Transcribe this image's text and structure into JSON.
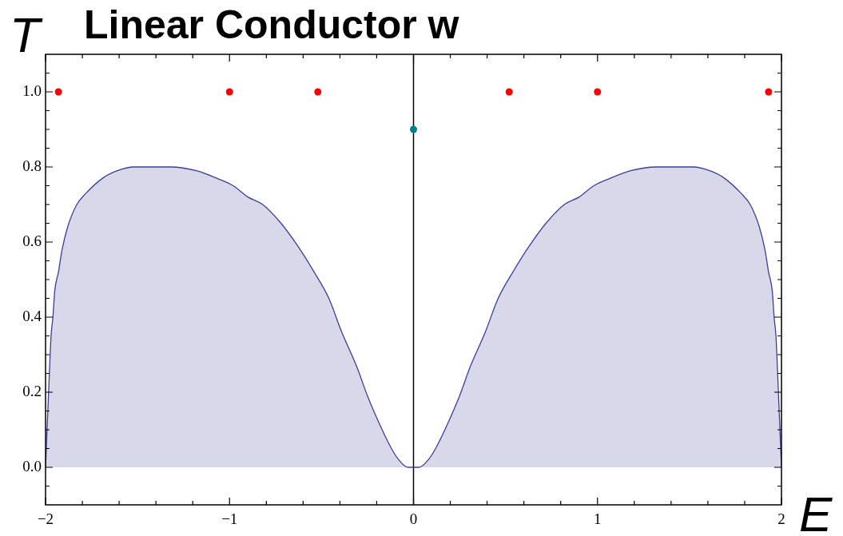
{
  "chart_data": {
    "type": "area",
    "title": "Linear Conductor w",
    "xlabel": "E",
    "ylabel": "T",
    "xlim": [
      -2,
      2
    ],
    "ylim": [
      -0.1,
      1.1
    ],
    "xticks": [
      {
        "value": -2,
        "label": "−2"
      },
      {
        "value": -1.8,
        "label": null
      },
      {
        "value": -1.6,
        "label": null
      },
      {
        "value": -1.4,
        "label": null
      },
      {
        "value": -1.2,
        "label": null
      },
      {
        "value": -1,
        "label": "−1"
      },
      {
        "value": -0.8,
        "label": null
      },
      {
        "value": -0.6,
        "label": null
      },
      {
        "value": -0.4,
        "label": null
      },
      {
        "value": -0.2,
        "label": null
      },
      0,
      {
        "value": 0.2,
        "label": null
      },
      {
        "value": 0.4,
        "label": null
      },
      {
        "value": 0.6,
        "label": null
      },
      {
        "value": 0.8,
        "label": null
      },
      1,
      {
        "value": 1.2,
        "label": null
      },
      {
        "value": 1.4,
        "label": null
      },
      {
        "value": 1.6,
        "label": null
      },
      {
        "value": 1.8,
        "label": null
      },
      2
    ],
    "yticks": [
      {
        "value": -0.05,
        "label": null
      },
      {
        "value": 0,
        "label": "0.0"
      },
      {
        "value": 0.05,
        "label": null
      },
      {
        "value": 0.1,
        "label": null
      },
      {
        "value": 0.15,
        "label": null
      },
      0.2,
      {
        "value": 0.25,
        "label": null
      },
      {
        "value": 0.3,
        "label": null
      },
      {
        "value": 0.35,
        "label": null
      },
      0.4,
      {
        "value": 0.45,
        "label": null
      },
      {
        "value": 0.5,
        "label": null
      },
      {
        "value": 0.55,
        "label": null
      },
      0.6,
      {
        "value": 0.65,
        "label": null
      },
      {
        "value": 0.7,
        "label": null
      },
      {
        "value": 0.75,
        "label": null
      },
      0.8,
      {
        "value": 0.85,
        "label": null
      },
      {
        "value": 0.9,
        "label": null
      },
      {
        "value": 0.95,
        "label": null
      },
      {
        "value": 1,
        "label": "1.0"
      },
      {
        "value": 1.05,
        "label": null
      }
    ],
    "ref_lines": [
      {
        "axis": "x",
        "value": 0,
        "color": "#000000"
      }
    ],
    "series": [
      {
        "color": "#3d3d99",
        "x": [
          -2,
          -1.99,
          -1.98,
          -1.97,
          -1.96,
          -1.95,
          -1.93,
          -1.91,
          -1.88,
          -1.83,
          -1.78,
          -1.69,
          -1.61,
          -1.52,
          -1.41,
          -1.32,
          -1.18,
          -1.07,
          -0.98,
          -0.9,
          -0.82,
          -0.72,
          -0.63,
          -0.54,
          -0.46,
          -0.39,
          -0.31,
          -0.25,
          -0.18,
          -0.12,
          -0.08,
          -0.03,
          0,
          0.03,
          0.08,
          0.12,
          0.18,
          0.25,
          0.31,
          0.39,
          0.46,
          0.54,
          0.63,
          0.72,
          0.82,
          0.9,
          0.98,
          1.07,
          1.18,
          1.32,
          1.41,
          1.52,
          1.61,
          1.69,
          1.78,
          1.83,
          1.88,
          1.91,
          1.93,
          1.95,
          1.96,
          1.97,
          1.98,
          1.99,
          2
        ],
        "values": [
          0,
          0.12,
          0.24,
          0.35,
          0.4,
          0.47,
          0.52,
          0.58,
          0.64,
          0.7,
          0.73,
          0.77,
          0.79,
          0.8,
          0.8,
          0.8,
          0.79,
          0.77,
          0.75,
          0.72,
          0.7,
          0.65,
          0.59,
          0.52,
          0.45,
          0.36,
          0.27,
          0.19,
          0.11,
          0.05,
          0.02,
          0,
          0,
          0,
          0.02,
          0.05,
          0.11,
          0.19,
          0.27,
          0.36,
          0.45,
          0.52,
          0.59,
          0.65,
          0.7,
          0.72,
          0.75,
          0.77,
          0.79,
          0.8,
          0.8,
          0.8,
          0.79,
          0.77,
          0.73,
          0.7,
          0.64,
          0.58,
          0.52,
          0.47,
          0.4,
          0.35,
          0.24,
          0.12,
          0
        ]
      },
      {
        "type": "scatter",
        "color": "#ff0000",
        "marker": "circle",
        "x": [
          -1.93,
          -1,
          -0.52,
          0.52,
          1,
          1.93
        ],
        "values": [
          1,
          1,
          1,
          1,
          1,
          1
        ]
      },
      {
        "type": "scatter",
        "color": "#008080",
        "marker": "circle",
        "x": [
          0
        ],
        "values": [
          0.9
        ]
      }
    ]
  }
}
